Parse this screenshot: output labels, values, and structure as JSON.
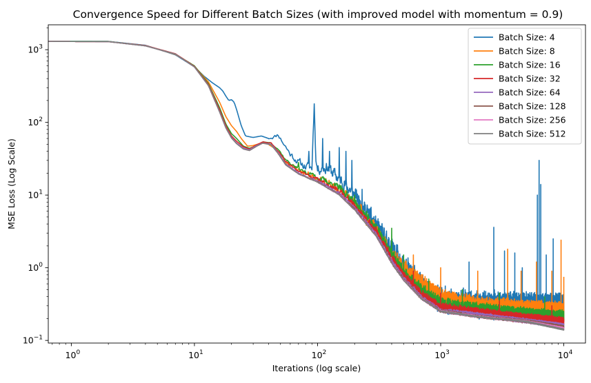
{
  "chart_data": {
    "type": "line",
    "title": "Convergence Speed for Different Batch Sizes (with improved model with momentum = 0.9)",
    "xlabel": "Iterations (log scale)",
    "ylabel": "MSE Loss (Log Scale)",
    "xscale": "log",
    "yscale": "log",
    "xlim": [
      0.65,
      15000
    ],
    "ylim": [
      0.092,
      2200
    ],
    "grid": false,
    "legend_position": "top-right",
    "xticks": [
      {
        "value": 1,
        "base": "10",
        "exp": "0"
      },
      {
        "value": 10,
        "base": "10",
        "exp": "1"
      },
      {
        "value": 100,
        "base": "10",
        "exp": "2"
      },
      {
        "value": 1000,
        "base": "10",
        "exp": "3"
      },
      {
        "value": 10000,
        "base": "10",
        "exp": "4"
      }
    ],
    "yticks": [
      {
        "value": 0.1,
        "base": "10",
        "exp": "−1"
      },
      {
        "value": 1,
        "base": "10",
        "exp": "0"
      },
      {
        "value": 10,
        "base": "10",
        "exp": "1"
      },
      {
        "value": 100,
        "base": "10",
        "exp": "2"
      },
      {
        "value": 1000,
        "base": "10",
        "exp": "3"
      }
    ],
    "series": [
      {
        "name": "Batch Size: 4",
        "color": "#1f77b4",
        "noise": 0.8,
        "seed": 11,
        "points": [
          [
            0.65,
            1300
          ],
          [
            2,
            1300
          ],
          [
            4,
            1150
          ],
          [
            7,
            850
          ],
          [
            10,
            580
          ],
          [
            12,
            430
          ],
          [
            14,
            350
          ],
          [
            16,
            300
          ],
          [
            17,
            270
          ],
          [
            18,
            230
          ],
          [
            19,
            200
          ],
          [
            20,
            205
          ],
          [
            21,
            190
          ],
          [
            22,
            150
          ],
          [
            24,
            90
          ],
          [
            26,
            65
          ],
          [
            30,
            62
          ],
          [
            35,
            65
          ],
          [
            40,
            60
          ],
          [
            45,
            62
          ],
          [
            48,
            66
          ],
          [
            50,
            58
          ],
          [
            60,
            35
          ],
          [
            70,
            27
          ],
          [
            80,
            23
          ],
          [
            90,
            22
          ],
          [
            94,
            180
          ],
          [
            97,
            28
          ],
          [
            100,
            21
          ],
          [
            120,
            22
          ],
          [
            150,
            15
          ],
          [
            200,
            9
          ],
          [
            300,
            3.2
          ],
          [
            400,
            1.5
          ],
          [
            500,
            0.9
          ],
          [
            600,
            0.6
          ],
          [
            800,
            0.4
          ],
          [
            1000,
            0.3
          ],
          [
            2000,
            0.26
          ],
          [
            5000,
            0.25
          ],
          [
            10000,
            0.24
          ]
        ],
        "spikes": [
          [
            94,
            180
          ],
          [
            70,
            30
          ],
          [
            85,
            40
          ],
          [
            110,
            60
          ],
          [
            125,
            40
          ],
          [
            150,
            45
          ],
          [
            170,
            40
          ],
          [
            190,
            30
          ],
          [
            230,
            12
          ],
          [
            2700,
            3.6
          ],
          [
            6300,
            30
          ],
          [
            6100,
            10
          ],
          [
            6500,
            14
          ],
          [
            1700,
            1.2
          ],
          [
            3300,
            1.7
          ],
          [
            4000,
            1.6
          ],
          [
            8200,
            2.5
          ],
          [
            4600,
            1.0
          ],
          [
            7200,
            1.5
          ]
        ]
      },
      {
        "name": "Batch Size: 8",
        "color": "#ff7f0e",
        "noise": 0.55,
        "seed": 23,
        "points": [
          [
            0.65,
            1300
          ],
          [
            2,
            1290
          ],
          [
            4,
            1140
          ],
          [
            7,
            860
          ],
          [
            10,
            590
          ],
          [
            13,
            360
          ],
          [
            16,
            190
          ],
          [
            18,
            120
          ],
          [
            20,
            90
          ],
          [
            22,
            75
          ],
          [
            24,
            60
          ],
          [
            27,
            47
          ],
          [
            30,
            48
          ],
          [
            35,
            52
          ],
          [
            40,
            50
          ],
          [
            45,
            42
          ],
          [
            50,
            33
          ],
          [
            60,
            25
          ],
          [
            80,
            19
          ],
          [
            100,
            16
          ],
          [
            150,
            11
          ],
          [
            200,
            7
          ],
          [
            300,
            3
          ],
          [
            400,
            1.4
          ],
          [
            500,
            0.9
          ],
          [
            700,
            0.55
          ],
          [
            1000,
            0.35
          ],
          [
            2000,
            0.27
          ],
          [
            5000,
            0.24
          ],
          [
            10000,
            0.22
          ]
        ],
        "spikes": [
          [
            600,
            1.5
          ],
          [
            1000,
            1.0
          ],
          [
            3500,
            1.8
          ],
          [
            6000,
            1.2
          ],
          [
            9500,
            2.4
          ],
          [
            2000,
            0.9
          ],
          [
            4500,
            0.9
          ],
          [
            8000,
            0.9
          ],
          [
            10000,
            0.75
          ]
        ]
      },
      {
        "name": "Batch Size: 16",
        "color": "#2ca02c",
        "noise": 0.4,
        "seed": 37,
        "points": [
          [
            0.65,
            1300
          ],
          [
            2,
            1300
          ],
          [
            4,
            1130
          ],
          [
            7,
            870
          ],
          [
            10,
            600
          ],
          [
            13,
            340
          ],
          [
            16,
            160
          ],
          [
            18,
            95
          ],
          [
            20,
            70
          ],
          [
            22,
            60
          ],
          [
            25,
            47
          ],
          [
            28,
            44
          ],
          [
            32,
            48
          ],
          [
            36,
            54
          ],
          [
            42,
            52
          ],
          [
            48,
            42
          ],
          [
            55,
            30
          ],
          [
            70,
            22
          ],
          [
            100,
            17
          ],
          [
            150,
            12
          ],
          [
            200,
            7.5
          ],
          [
            300,
            3.2
          ],
          [
            400,
            1.4
          ],
          [
            500,
            0.8
          ],
          [
            700,
            0.45
          ],
          [
            1000,
            0.3
          ],
          [
            2000,
            0.25
          ],
          [
            5000,
            0.21
          ],
          [
            10000,
            0.19
          ]
        ],
        "spikes": [
          [
            70,
            28
          ],
          [
            90,
            20
          ],
          [
            200,
            10
          ],
          [
            300,
            4
          ],
          [
            400,
            3.5
          ],
          [
            500,
            1.5
          ],
          [
            800,
            0.7
          ],
          [
            1500,
            0.5
          ],
          [
            3000,
            0.45
          ],
          [
            7000,
            0.4
          ]
        ]
      },
      {
        "name": "Batch Size: 32",
        "color": "#d62728",
        "noise": 0.28,
        "seed": 41,
        "points": [
          [
            0.65,
            1300
          ],
          [
            2,
            1290
          ],
          [
            4,
            1140
          ],
          [
            7,
            880
          ],
          [
            10,
            590
          ],
          [
            13,
            330
          ],
          [
            16,
            150
          ],
          [
            18,
            90
          ],
          [
            20,
            65
          ],
          [
            22,
            55
          ],
          [
            25,
            46
          ],
          [
            28,
            43
          ],
          [
            32,
            49
          ],
          [
            36,
            54
          ],
          [
            42,
            51
          ],
          [
            48,
            40
          ],
          [
            55,
            28
          ],
          [
            70,
            21
          ],
          [
            100,
            16
          ],
          [
            150,
            11
          ],
          [
            200,
            7
          ],
          [
            300,
            3
          ],
          [
            400,
            1.3
          ],
          [
            500,
            0.75
          ],
          [
            700,
            0.4
          ],
          [
            1000,
            0.27
          ],
          [
            2000,
            0.23
          ],
          [
            5000,
            0.19
          ],
          [
            10000,
            0.17
          ]
        ],
        "spikes": [
          [
            600,
            0.9
          ],
          [
            1000,
            0.45
          ],
          [
            3000,
            0.35
          ],
          [
            8000,
            0.3
          ]
        ]
      },
      {
        "name": "Batch Size: 64",
        "color": "#9467bd",
        "noise": 0.14,
        "seed": 53,
        "points": [
          [
            0.65,
            1300
          ],
          [
            2,
            1290
          ],
          [
            4,
            1130
          ],
          [
            7,
            870
          ],
          [
            10,
            580
          ],
          [
            13,
            320
          ],
          [
            16,
            140
          ],
          [
            18,
            85
          ],
          [
            20,
            62
          ],
          [
            22,
            52
          ],
          [
            25,
            44
          ],
          [
            28,
            42
          ],
          [
            32,
            48
          ],
          [
            36,
            52
          ],
          [
            42,
            50
          ],
          [
            48,
            38
          ],
          [
            55,
            27
          ],
          [
            70,
            20
          ],
          [
            100,
            15.5
          ],
          [
            150,
            10.5
          ],
          [
            200,
            6.5
          ],
          [
            300,
            2.8
          ],
          [
            400,
            1.2
          ],
          [
            500,
            0.7
          ],
          [
            700,
            0.38
          ],
          [
            1000,
            0.25
          ],
          [
            2000,
            0.22
          ],
          [
            5000,
            0.18
          ],
          [
            10000,
            0.155
          ]
        ],
        "spikes": []
      },
      {
        "name": "Batch Size: 128",
        "color": "#8c564b",
        "noise": 0.09,
        "seed": 61,
        "points": [
          [
            0.65,
            1300
          ],
          [
            2,
            1290
          ],
          [
            4,
            1130
          ],
          [
            7,
            870
          ],
          [
            10,
            580
          ],
          [
            13,
            320
          ],
          [
            16,
            140
          ],
          [
            18,
            84
          ],
          [
            20,
            61
          ],
          [
            22,
            51
          ],
          [
            25,
            43
          ],
          [
            28,
            41
          ],
          [
            32,
            47
          ],
          [
            36,
            52
          ],
          [
            42,
            49
          ],
          [
            48,
            37
          ],
          [
            55,
            26
          ],
          [
            70,
            19.5
          ],
          [
            100,
            15
          ],
          [
            150,
            10
          ],
          [
            200,
            6.3
          ],
          [
            300,
            2.7
          ],
          [
            400,
            1.15
          ],
          [
            500,
            0.68
          ],
          [
            700,
            0.37
          ],
          [
            1000,
            0.25
          ],
          [
            2000,
            0.21
          ],
          [
            5000,
            0.18
          ],
          [
            10000,
            0.15
          ]
        ],
        "spikes": []
      },
      {
        "name": "Batch Size: 256",
        "color": "#e377c2",
        "noise": 0.06,
        "seed": 71,
        "points": [
          [
            0.65,
            1300
          ],
          [
            2,
            1290
          ],
          [
            4,
            1130
          ],
          [
            7,
            870
          ],
          [
            10,
            580
          ],
          [
            13,
            320
          ],
          [
            16,
            140
          ],
          [
            18,
            84
          ],
          [
            20,
            61
          ],
          [
            22,
            51
          ],
          [
            25,
            43
          ],
          [
            28,
            41
          ],
          [
            32,
            47
          ],
          [
            36,
            52
          ],
          [
            42,
            49
          ],
          [
            48,
            37
          ],
          [
            55,
            26
          ],
          [
            70,
            19.5
          ],
          [
            100,
            15
          ],
          [
            150,
            10
          ],
          [
            200,
            6.2
          ],
          [
            300,
            2.7
          ],
          [
            400,
            1.15
          ],
          [
            500,
            0.67
          ],
          [
            700,
            0.37
          ],
          [
            1000,
            0.25
          ],
          [
            2000,
            0.21
          ],
          [
            5000,
            0.18
          ],
          [
            10000,
            0.145
          ]
        ],
        "spikes": []
      },
      {
        "name": "Batch Size: 512",
        "color": "#7f7f7f",
        "noise": 0.04,
        "seed": 83,
        "points": [
          [
            0.65,
            1300
          ],
          [
            2,
            1290
          ],
          [
            4,
            1130
          ],
          [
            7,
            870
          ],
          [
            10,
            580
          ],
          [
            13,
            320
          ],
          [
            16,
            140
          ],
          [
            18,
            84
          ],
          [
            20,
            61
          ],
          [
            22,
            51
          ],
          [
            25,
            43
          ],
          [
            28,
            41
          ],
          [
            32,
            47
          ],
          [
            36,
            52
          ],
          [
            42,
            49
          ],
          [
            48,
            37
          ],
          [
            55,
            26
          ],
          [
            70,
            19.5
          ],
          [
            100,
            15
          ],
          [
            150,
            10
          ],
          [
            200,
            6.2
          ],
          [
            300,
            2.7
          ],
          [
            400,
            1.15
          ],
          [
            500,
            0.67
          ],
          [
            700,
            0.37
          ],
          [
            1000,
            0.25
          ],
          [
            2000,
            0.21
          ],
          [
            5000,
            0.18
          ],
          [
            10000,
            0.14
          ]
        ],
        "spikes": []
      }
    ]
  }
}
